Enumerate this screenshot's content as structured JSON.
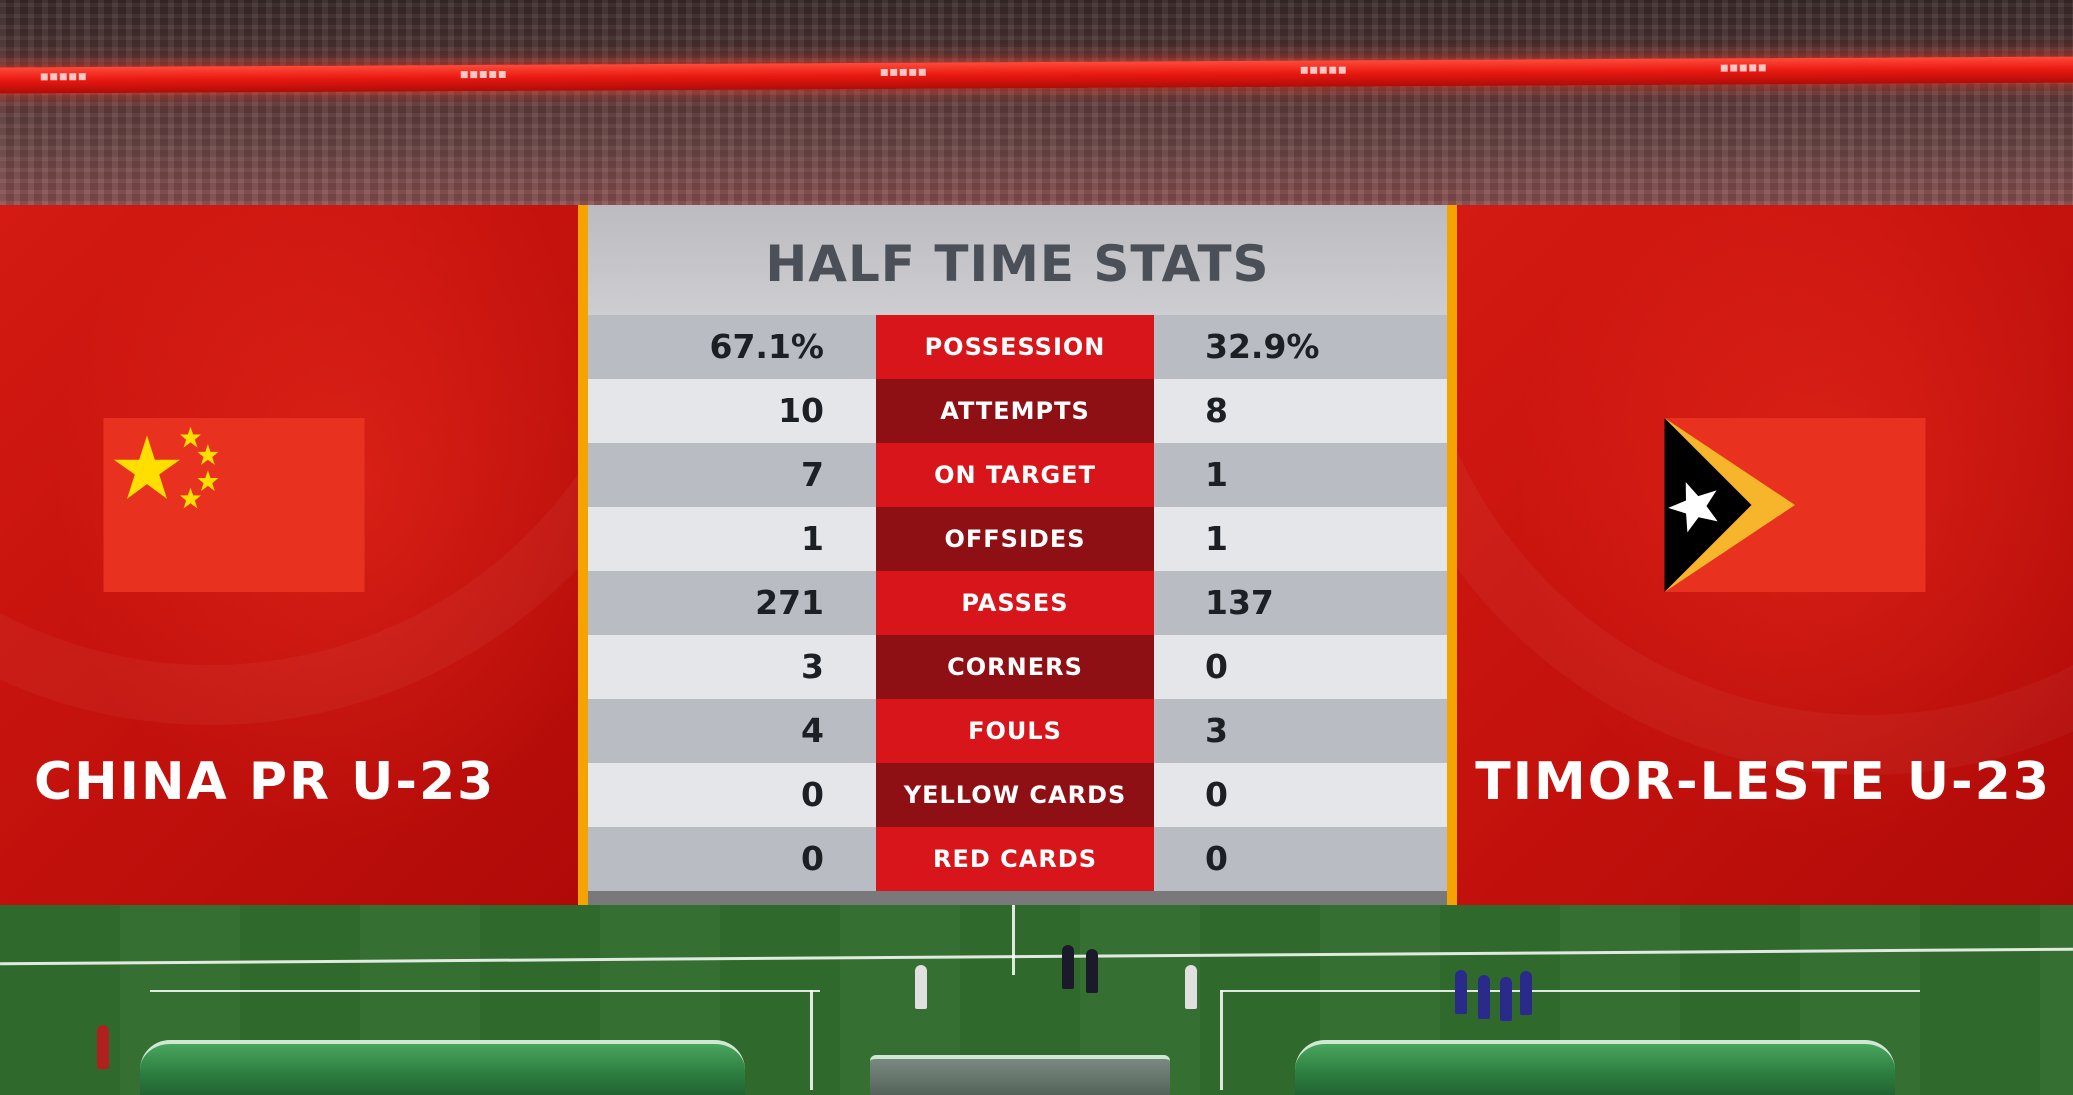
{
  "title": "HALF TIME STATS",
  "home_team": {
    "name": "CHINA PR U-23",
    "flag": "china-flag",
    "flag_colors": {
      "field": "#e8321f",
      "star": "#ffde00"
    }
  },
  "away_team": {
    "name": "TIMOR-LESTE U-23",
    "flag": "timor-leste-flag",
    "flag_colors": {
      "field": "#e8321f",
      "chevron": "#f7b52c",
      "triangle": "#000000",
      "star": "#ffffff"
    }
  },
  "stats": [
    {
      "label": "POSSESSION",
      "home": "67.1%",
      "away": "32.9%"
    },
    {
      "label": "ATTEMPTS",
      "home": "10",
      "away": "8"
    },
    {
      "label": "ON TARGET",
      "home": "7",
      "away": "1"
    },
    {
      "label": "OFFSIDES",
      "home": "1",
      "away": "1"
    },
    {
      "label": "PASSES",
      "home": "271",
      "away": "137"
    },
    {
      "label": "CORNERS",
      "home": "3",
      "away": "0"
    },
    {
      "label": "FOULS",
      "home": "4",
      "away": "3"
    },
    {
      "label": "YELLOW CARDS",
      "home": "0",
      "away": "0"
    },
    {
      "label": "RED CARDS",
      "home": "0",
      "away": "0"
    }
  ],
  "colors": {
    "panel_red": "#c5120d",
    "label_red": "#d8151a",
    "label_dark_red": "#8f1014",
    "accent_orange": "#f5a300",
    "title_gray": "#4a4f58"
  }
}
